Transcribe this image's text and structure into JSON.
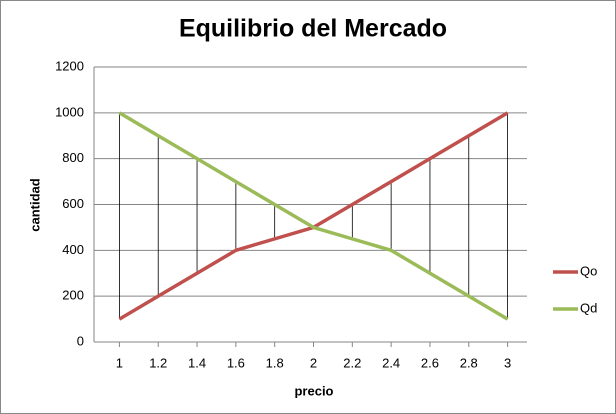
{
  "chart_data": {
    "type": "line",
    "title": "Equilibrio del Mercado",
    "x_label": "precio",
    "y_label": "cantidad",
    "categories": [
      "1",
      "1.2",
      "1.4",
      "1.6",
      "1.8",
      "2",
      "2.2",
      "2.4",
      "2.6",
      "2.8",
      "3"
    ],
    "series": [
      {
        "name": "Qo",
        "color": "#c0504d",
        "values": [
          100,
          200,
          300,
          400,
          450,
          500,
          600,
          700,
          800,
          900,
          1000
        ]
      },
      {
        "name": "Qd",
        "color": "#9bbb59",
        "values": [
          1000,
          900,
          800,
          700,
          600,
          500,
          450,
          400,
          300,
          200,
          100
        ]
      }
    ],
    "ylim": [
      0,
      1200
    ],
    "yticks": [
      0,
      200,
      400,
      600,
      800,
      1000,
      1200
    ],
    "grid": true,
    "drop_lines": true,
    "legend": "right"
  }
}
